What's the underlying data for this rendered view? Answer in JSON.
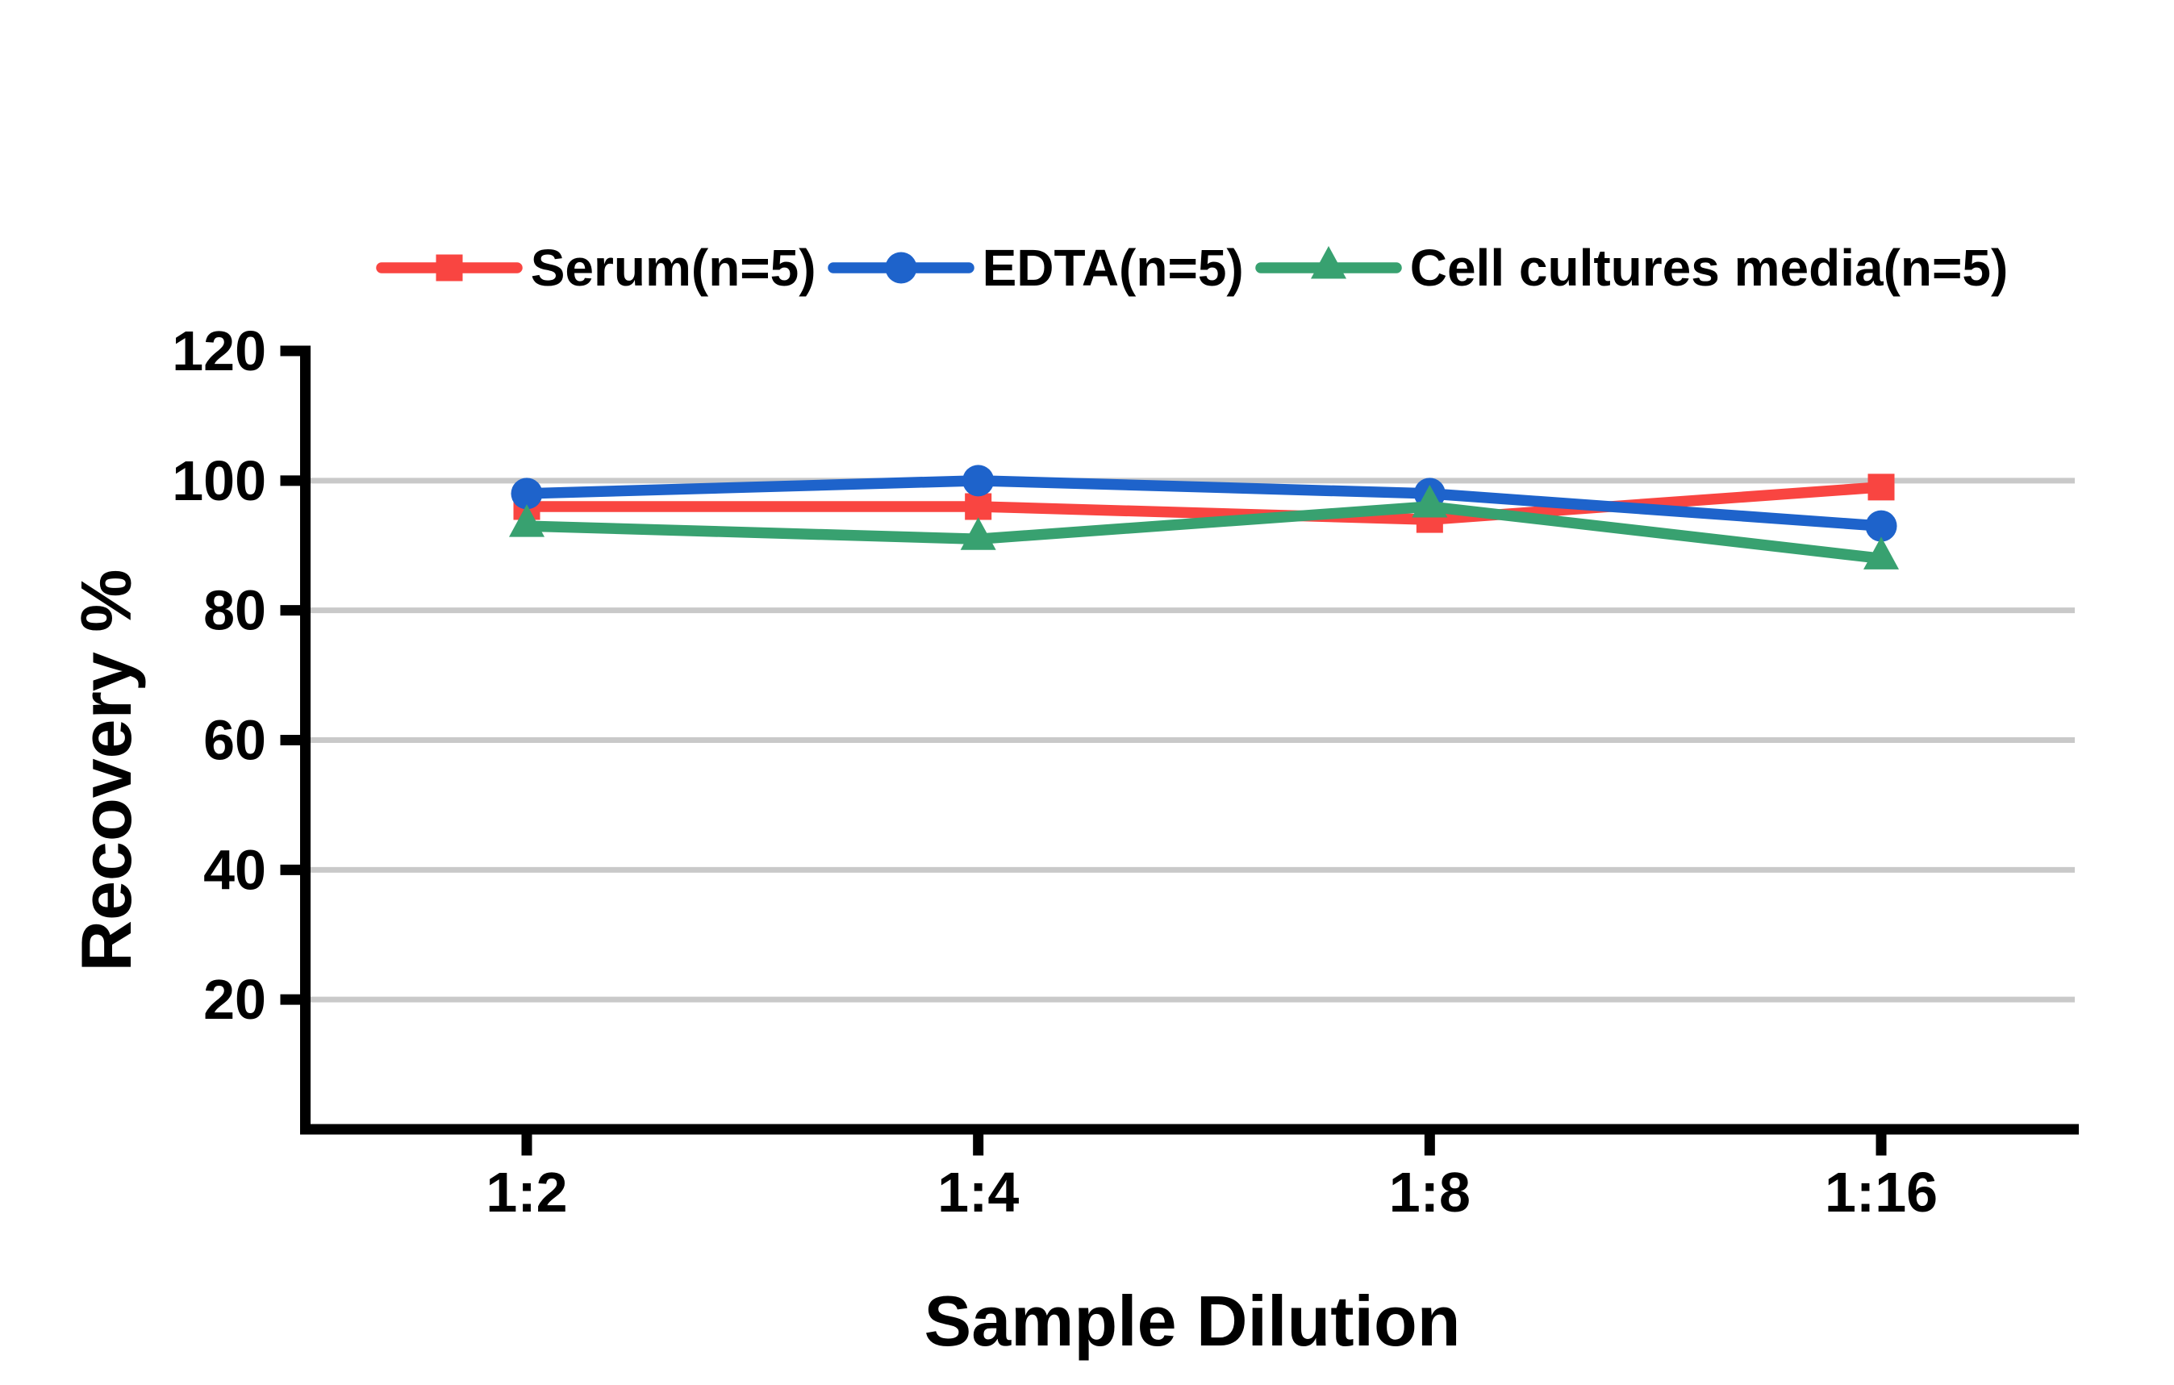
{
  "chart_data": {
    "type": "line",
    "title": "",
    "xlabel": "Sample Dilution",
    "ylabel": "Recovery %",
    "categories": [
      "1:2",
      "1:4",
      "1:8",
      "1:16"
    ],
    "y_ticks": [
      20,
      40,
      60,
      80,
      100,
      120
    ],
    "ylim": [
      0,
      120
    ],
    "grid": "horizontal",
    "legend_position": "top",
    "series": [
      {
        "name": "Serum(n=5)",
        "marker": "square",
        "color": "#F94541",
        "values": [
          96,
          96,
          94,
          99
        ]
      },
      {
        "name": "EDTA(n=5)",
        "marker": "circle",
        "color": "#1E63CB",
        "values": [
          98,
          100,
          98,
          93
        ]
      },
      {
        "name": "Cell cultures media(n=5)",
        "marker": "triangle",
        "color": "#38A170",
        "values": [
          93,
          91,
          96,
          88
        ]
      }
    ]
  },
  "colors": {
    "axis": "#000000",
    "grid": "#C9C9C9",
    "background": "#FFFFFF",
    "text": "#000000"
  }
}
